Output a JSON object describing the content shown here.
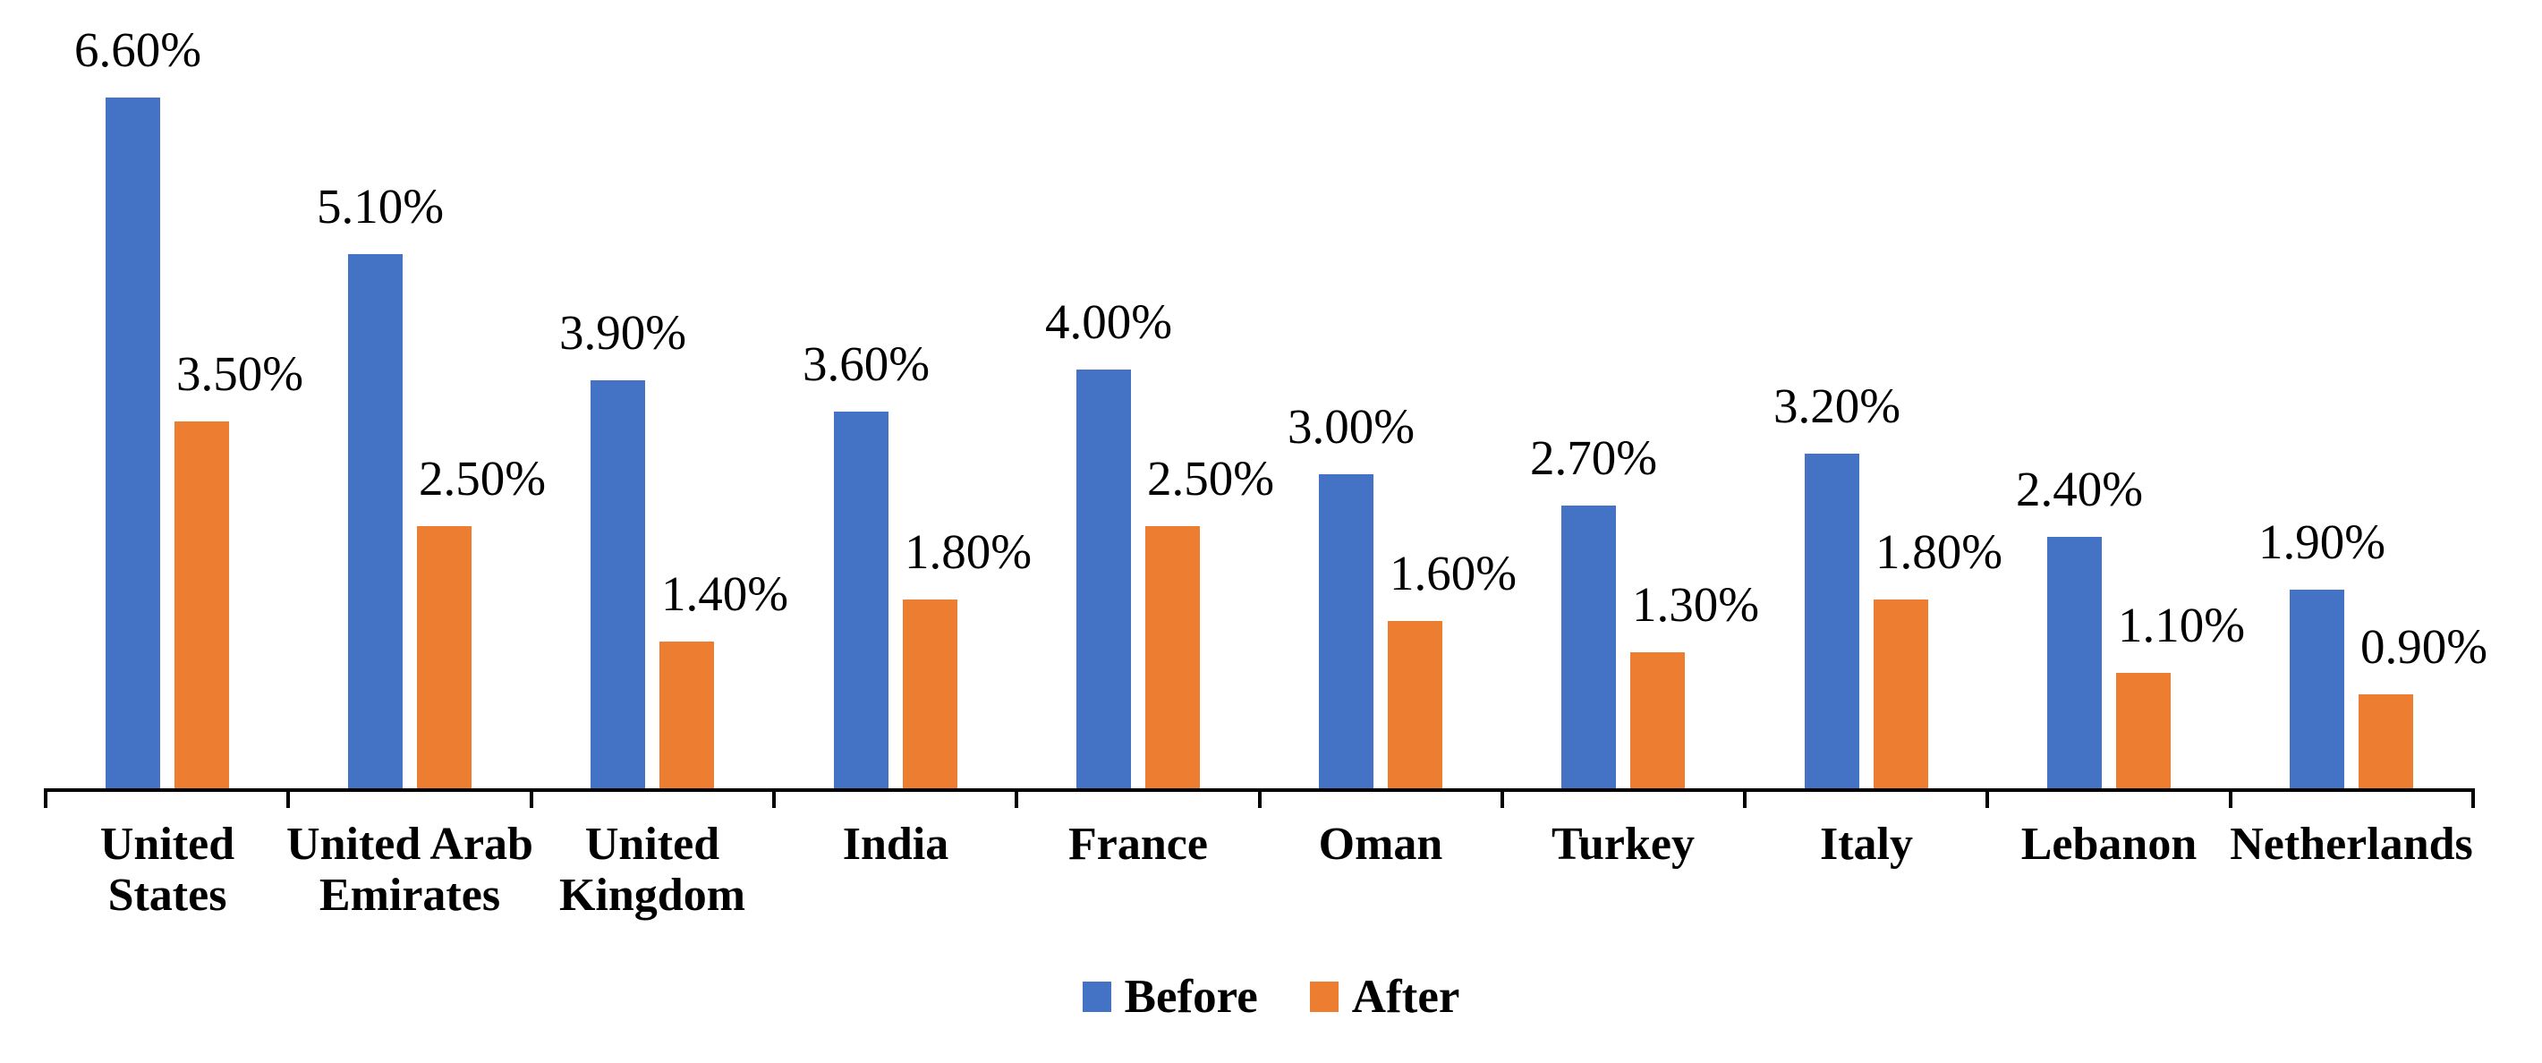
{
  "chart_data": {
    "type": "bar",
    "title": "",
    "xlabel": "",
    "ylabel": "",
    "categories": [
      "United\nStates",
      "United Arab\nEmirates",
      "United\nKingdom",
      "India",
      "France",
      "Oman",
      "Turkey",
      "Italy",
      "Lebanon",
      "Netherlands"
    ],
    "series": [
      {
        "name": "Before",
        "color": "#4472C4",
        "values": [
          6.6,
          5.1,
          3.9,
          3.6,
          4.0,
          3.0,
          2.7,
          3.2,
          2.4,
          1.9
        ],
        "labels": [
          "6.60%",
          "5.10%",
          "3.90%",
          "3.60%",
          "4.00%",
          "3.00%",
          "2.70%",
          "3.20%",
          "2.40%",
          "1.90%"
        ]
      },
      {
        "name": "After",
        "color": "#ED7D31",
        "values": [
          3.5,
          2.5,
          1.4,
          1.8,
          2.5,
          1.6,
          1.3,
          1.8,
          1.1,
          0.9
        ],
        "labels": [
          "3.50%",
          "2.50%",
          "1.40%",
          "1.80%",
          "2.50%",
          "1.60%",
          "1.30%",
          "1.80%",
          "1.10%",
          "0.90%"
        ]
      }
    ],
    "ylim": [
      0,
      7
    ],
    "grid": false,
    "legend_position": "bottom",
    "axis_color": "#000000",
    "text_color": "#000000"
  }
}
